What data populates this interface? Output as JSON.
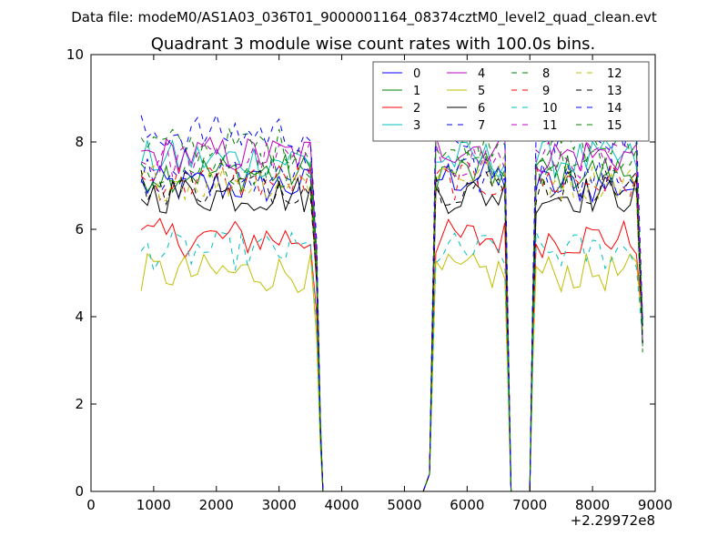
{
  "chart_data": {
    "type": "line",
    "suptitle": "Data file: modeM0/AS1A03_036T01_9000001164_08374cztM0_level2_quad_clean.evt",
    "title": "Quadrant 3 module wise count rates with 100.0s bins.",
    "xlabel": "",
    "ylabel": "",
    "x_offset_label": "+2.29972e8",
    "xlim": [
      0,
      9000
    ],
    "ylim": [
      0,
      10
    ],
    "xticks": [
      0,
      1000,
      2000,
      3000,
      4000,
      5000,
      6000,
      7000,
      8000,
      9000
    ],
    "yticks": [
      0,
      2,
      4,
      6,
      8,
      10
    ],
    "legend_position": "top-right",
    "legend_columns": 4,
    "segments": [
      {
        "x_start": 800,
        "x_end": 3600,
        "step": 100
      },
      {
        "x_start": 5500,
        "x_end": 6600,
        "step": 100
      },
      {
        "x_start": 7100,
        "x_end": 8800,
        "step": 100
      }
    ],
    "gaps": [
      {
        "x_start": 3700,
        "x_end": 5300,
        "value": 0
      },
      {
        "x_start": 6700,
        "x_end": 7000,
        "value": 0
      }
    ],
    "series": [
      {
        "name": "0",
        "color": "#0000ff",
        "dash": "solid",
        "level": 7.0
      },
      {
        "name": "1",
        "color": "#008000",
        "dash": "solid",
        "level": 7.3
      },
      {
        "name": "2",
        "color": "#ff0000",
        "dash": "solid",
        "level": 5.8
      },
      {
        "name": "3",
        "color": "#00bfbf",
        "dash": "solid",
        "level": 7.6
      },
      {
        "name": "4",
        "color": "#bf00bf",
        "dash": "solid",
        "level": 7.7
      },
      {
        "name": "5",
        "color": "#bfbf00",
        "dash": "solid",
        "level": 5.0
      },
      {
        "name": "6",
        "color": "#000000",
        "dash": "solid",
        "level": 6.8
      },
      {
        "name": "7",
        "color": "#0000ff",
        "dash": "dashed",
        "level": 7.2
      },
      {
        "name": "8",
        "color": "#008000",
        "dash": "dashed",
        "level": 7.9
      },
      {
        "name": "9",
        "color": "#ff0000",
        "dash": "dashed",
        "level": 7.1
      },
      {
        "name": "10",
        "color": "#00bfbf",
        "dash": "dashed",
        "level": 5.5
      },
      {
        "name": "11",
        "color": "#bf00bf",
        "dash": "dashed",
        "level": 7.6
      },
      {
        "name": "12",
        "color": "#bfbf00",
        "dash": "dashed",
        "level": 7.1
      },
      {
        "name": "13",
        "color": "#000000",
        "dash": "dashed",
        "level": 7.0
      },
      {
        "name": "14",
        "color": "#0000ff",
        "dash": "dashed",
        "level": 8.2
      },
      {
        "name": "15",
        "color": "#008000",
        "dash": "dashed",
        "level": 7.4
      }
    ]
  }
}
